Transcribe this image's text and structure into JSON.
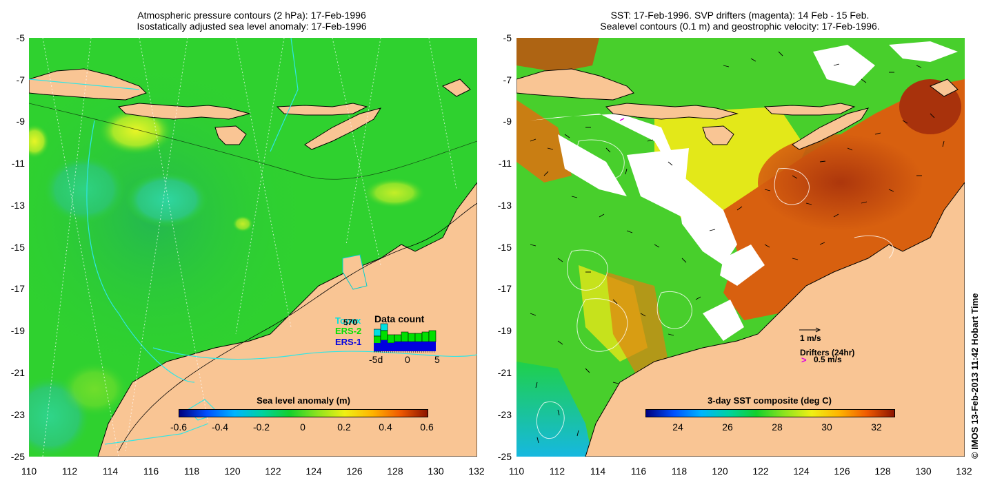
{
  "left_panel": {
    "title_line1": "Atmospheric pressure contours (2 hPa): 17-Feb-1996",
    "title_line2": "Isostatically adjusted sea level anomaly: 17-Feb-1996",
    "colorbar_label": "Sea level anomaly (m)",
    "colorbar_ticks": [
      "-0.6",
      "-0.4",
      "-0.2",
      "0",
      "0.2",
      "0.4",
      "0.6"
    ],
    "legend": {
      "title": "Data count",
      "count": "570",
      "satellites": [
        {
          "name": "Topex",
          "color": "#00e0e0"
        },
        {
          "name": "ERS-2",
          "color": "#00e000"
        },
        {
          "name": "ERS-1",
          "color": "#0000e0"
        }
      ],
      "axis_ticks": [
        "-5d",
        "0",
        "5"
      ]
    }
  },
  "right_panel": {
    "title_line1": "SST: 17-Feb-1996. SVP drifters (magenta): 14 Feb - 15 Feb.",
    "title_line2": "Sealevel contours (0.1 m) and geostrophic velocity: 17-Feb-1996.",
    "colorbar_label": "3-day SST composite (deg C)",
    "colorbar_ticks": [
      "24",
      "26",
      "28",
      "30",
      "32"
    ],
    "velocity_scale_label": "1 m/s",
    "drifters_label": "Drifters (24hr)",
    "drifters_speed": "0.5 m/s",
    "drifter_symbol": ">"
  },
  "axes": {
    "y_ticks": [
      "-5",
      "-7",
      "-9",
      "-11",
      "-13",
      "-15",
      "-17",
      "-19",
      "-21",
      "-23",
      "-25"
    ],
    "x_ticks": [
      "110",
      "112",
      "114",
      "116",
      "118",
      "120",
      "122",
      "124",
      "126",
      "128",
      "130",
      "132"
    ]
  },
  "credit": "© IMOS 13-Feb-2013 11:42 Hobart Time",
  "colors": {
    "land": "#f9c594",
    "ocean_green": "#2fd12f",
    "ocean_dark": "#1fa63a",
    "sst_red": "#c4440f",
    "sst_orange": "#e0700f",
    "cloud": "#ffffff",
    "contour_cyan": "#2ee6e6"
  }
}
